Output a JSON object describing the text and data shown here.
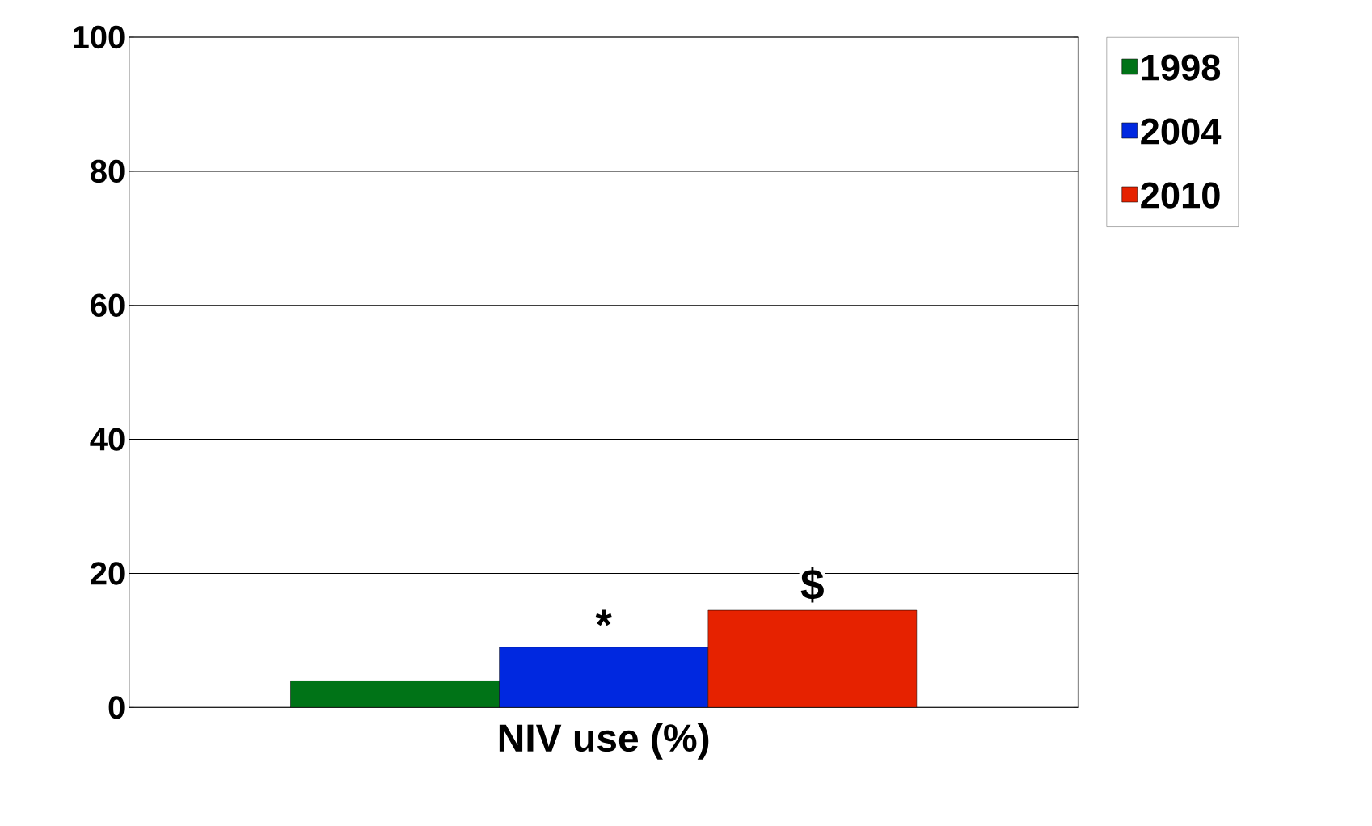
{
  "chart_data": {
    "type": "bar",
    "xlabel": "NIV use (%)",
    "categories": [
      null
    ],
    "series": [
      {
        "name": "1998",
        "color": "#007317",
        "values": [
          4
        ]
      },
      {
        "name": "2004",
        "color": "#0028e0",
        "values": [
          9
        ]
      },
      {
        "name": "2010",
        "color": "#e62200",
        "values": [
          14.5
        ]
      }
    ],
    "ylim": [
      0,
      100
    ],
    "yticks": [
      0,
      20,
      40,
      60,
      80,
      100
    ],
    "grid": "y",
    "legend": "top right",
    "annotations": [
      "*",
      "$"
    ]
  }
}
